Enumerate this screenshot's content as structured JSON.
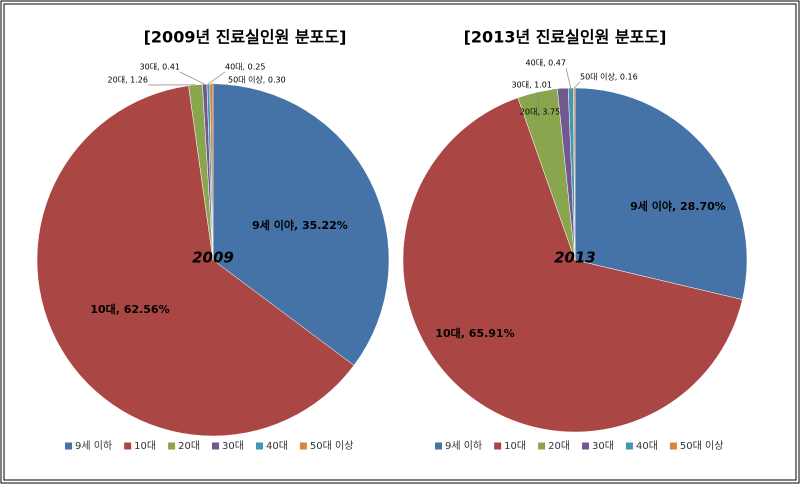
{
  "chart_data": [
    {
      "type": "pie",
      "title": "[2009년 진료실인원 분포도]",
      "annotation": "2009",
      "categories": [
        "9세 이하",
        "10대",
        "20대",
        "30대",
        "40대",
        "50대 이상"
      ],
      "values": [
        35.22,
        62.56,
        1.26,
        0.41,
        0.25,
        0.3
      ],
      "value_labels": [
        "9세 이야, 35.22%",
        "10대, 62.56%",
        "20대, 1.26",
        "30대, 0.41",
        "40대, 0.25",
        "50대 이상, 0.30"
      ],
      "colors": [
        "#4572a7",
        "#aa4643",
        "#89a54e",
        "#71588f",
        "#4198af",
        "#db843d"
      ],
      "legend": "bottom"
    },
    {
      "type": "pie",
      "title": "[2013년 진료실인원 분포도]",
      "annotation": "2013",
      "categories": [
        "9세 이하",
        "10대",
        "20대",
        "30대",
        "40대",
        "50대 이상"
      ],
      "values": [
        28.7,
        65.91,
        3.75,
        1.01,
        0.47,
        0.16
      ],
      "value_labels": [
        "9세 이야, 28.70%",
        "10대, 65.91%",
        "20대, 3.75",
        "30대, 1.01",
        "40대, 0.47",
        "50대 이상, 0.16"
      ],
      "colors": [
        "#4572a7",
        "#aa4643",
        "#89a54e",
        "#71588f",
        "#4198af",
        "#db843d"
      ],
      "legend": "bottom"
    }
  ]
}
